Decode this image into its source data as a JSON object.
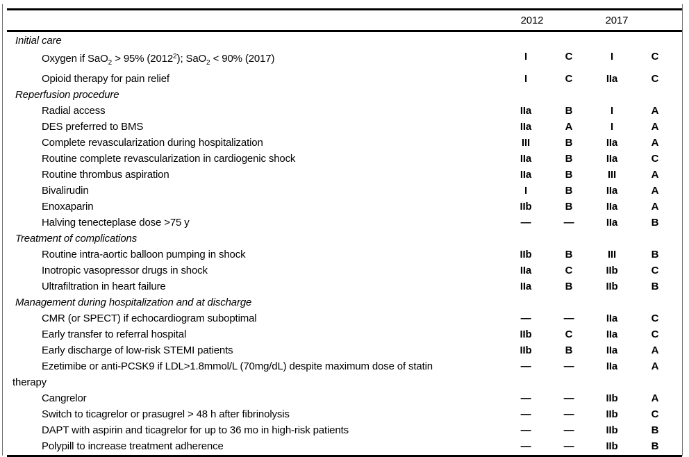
{
  "header": {
    "year_left": "2012",
    "year_right": "2017"
  },
  "colors": {
    "text": "#000000",
    "background": "#ffffff",
    "rule": "#000000",
    "frame": "#6e6e6e"
  },
  "rows": [
    {
      "type": "section",
      "label": "Initial care"
    },
    {
      "type": "item",
      "rich": [
        {
          "t": "Oxygen if SaO"
        },
        {
          "t": "2",
          "m": "sub"
        },
        {
          "t": " > 95% (2012"
        },
        {
          "t": "2",
          "m": "sup"
        },
        {
          "t": "); SaO"
        },
        {
          "t": "2",
          "m": "sub"
        },
        {
          "t": " < 90% (2017)"
        }
      ],
      "v": [
        "I",
        "C",
        "I",
        "C"
      ]
    },
    {
      "type": "item",
      "label": "Opioid therapy for pain relief",
      "v": [
        "I",
        "C",
        "IIa",
        "C"
      ]
    },
    {
      "type": "section",
      "label": "Reperfusion procedure"
    },
    {
      "type": "item",
      "label": "Radial access",
      "v": [
        "IIa",
        "B",
        "I",
        "A"
      ]
    },
    {
      "type": "item",
      "label": "DES preferred to BMS",
      "v": [
        "IIa",
        "A",
        "I",
        "A"
      ]
    },
    {
      "type": "item",
      "label": "Complete revascularization during hospitalization",
      "v": [
        "III",
        "B",
        "IIa",
        "A"
      ]
    },
    {
      "type": "item",
      "label": "Routine complete revascularization in cardiogenic shock",
      "v": [
        "IIa",
        "B",
        "IIa",
        "C"
      ]
    },
    {
      "type": "item",
      "label": "Routine thrombus aspiration",
      "v": [
        "IIa",
        "B",
        "III",
        "A"
      ]
    },
    {
      "type": "item",
      "label": "Bivalirudin",
      "v": [
        "I",
        "B",
        "IIa",
        "A"
      ]
    },
    {
      "type": "item",
      "label": "Enoxaparin",
      "v": [
        "IIb",
        "B",
        "IIa",
        "A"
      ]
    },
    {
      "type": "item",
      "label": "Halving tenecteplase dose >75 y",
      "v": [
        "—",
        "—",
        "IIa",
        "B"
      ]
    },
    {
      "type": "section",
      "label": "Treatment of complications"
    },
    {
      "type": "item",
      "label": "Routine intra-aortic balloon pumping in shock",
      "v": [
        "IIb",
        "B",
        "III",
        "B"
      ]
    },
    {
      "type": "item",
      "label": "Inotropic vasopressor drugs in shock",
      "v": [
        "IIa",
        "C",
        "IIb",
        "C"
      ]
    },
    {
      "type": "item",
      "label": "Ultrafiltration in heart failure",
      "v": [
        "IIa",
        "B",
        "IIb",
        "B"
      ]
    },
    {
      "type": "section",
      "label": "Management during hospitalization and at discharge"
    },
    {
      "type": "item",
      "label": "CMR (or SPECT) if echocardiogram suboptimal",
      "v": [
        "—",
        "—",
        "IIa",
        "C"
      ]
    },
    {
      "type": "item",
      "label": "Early transfer to referral hospital",
      "v": [
        "IIb",
        "C",
        "IIa",
        "C"
      ]
    },
    {
      "type": "item",
      "label": "Early discharge of low-risk STEMI patients",
      "v": [
        "IIb",
        "B",
        "IIa",
        "A"
      ]
    },
    {
      "type": "item",
      "label": "Ezetimibe or anti-PCSK9 if LDL>1.8mmol/L (70mg/dL) despite maximum dose of statin",
      "label2": "therapy",
      "v": [
        "—",
        "—",
        "IIa",
        "A"
      ]
    },
    {
      "type": "item",
      "label": "Cangrelor",
      "v": [
        "—",
        "—",
        "IIb",
        "A"
      ]
    },
    {
      "type": "item",
      "label": "Switch to ticagrelor or prasugrel > 48 h after fibrinolysis",
      "v": [
        "—",
        "—",
        "IIb",
        "C"
      ]
    },
    {
      "type": "item",
      "label": "DAPT with aspirin and ticagrelor for up to 36 mo in high-risk patients",
      "v": [
        "—",
        "—",
        "IIb",
        "B"
      ]
    },
    {
      "type": "item",
      "label": "Polypill to increase treatment adherence",
      "v": [
        "—",
        "—",
        "IIb",
        "B"
      ]
    }
  ]
}
